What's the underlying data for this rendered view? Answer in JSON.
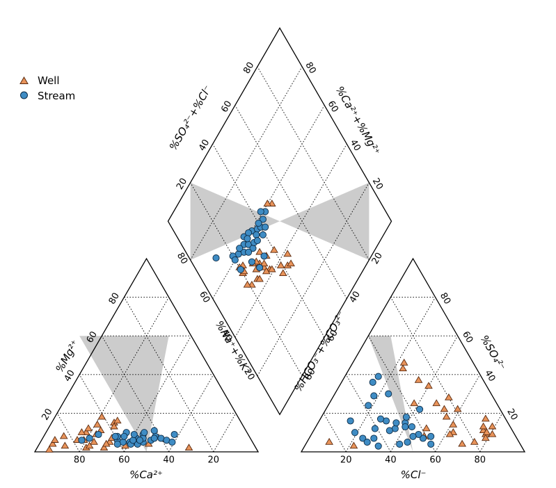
{
  "chart_data": {
    "type": "scatter",
    "title": "",
    "axis_labels": {
      "cation_bottom": "%Ca²⁺",
      "cation_left": "%Mg²⁺",
      "anion_bottom": "%Cl⁻",
      "anion_right": "%SO₄²⁻",
      "diamond_upper_left": "%SO₄²⁻+%Cl⁻",
      "diamond_upper_right": "%Ca²⁺+%Mg²⁺",
      "diamond_lower_left": "%Na⁺+%K⁺",
      "diamond_lower_right": "%HCO₃⁻+%CO₃²⁻"
    },
    "tick_labels": {
      "cation_bottom": [
        "80",
        "60",
        "40",
        "20"
      ],
      "cation_left": [
        "20",
        "40",
        "60",
        "80"
      ],
      "anion_bottom": [
        "20",
        "40",
        "60",
        "80"
      ],
      "anion_right": [
        "80",
        "60",
        "40",
        "20"
      ],
      "diamond_upper_left": [
        "20",
        "40",
        "60",
        "80"
      ],
      "diamond_upper_right": [
        "80",
        "60",
        "40",
        "20"
      ],
      "diamond_lower_left": [
        "20",
        "40",
        "60",
        "80"
      ],
      "diamond_lower_right": [
        "20",
        "40",
        "60",
        "80"
      ]
    },
    "grid": true,
    "legend_position": "top-left",
    "series": [
      {
        "name": "Well",
        "marker": "triangle",
        "color": "#e8935a",
        "cation": [
          [
            1,
            93,
            6
          ],
          [
            8,
            83,
            9
          ],
          [
            3,
            85,
            12
          ],
          [
            2,
            76,
            22
          ],
          [
            6,
            75,
            19
          ],
          [
            10,
            72,
            18
          ],
          [
            5,
            71,
            24
          ],
          [
            14,
            65,
            21
          ],
          [
            18,
            61,
            21
          ],
          [
            15,
            57,
            28
          ],
          [
            16,
            55,
            29
          ],
          [
            9,
            68,
            23
          ],
          [
            11,
            65,
            24
          ],
          [
            2,
            68,
            30
          ],
          [
            5,
            64,
            31
          ],
          [
            3,
            58,
            39
          ],
          [
            7,
            62,
            31
          ],
          [
            4,
            47,
            49
          ],
          [
            2,
            30,
            68
          ],
          [
            10,
            74,
            16
          ],
          [
            12,
            70,
            18
          ],
          [
            6,
            78,
            16
          ],
          [
            3,
            74,
            23
          ],
          [
            4,
            66,
            30
          ],
          [
            13,
            58,
            29
          ],
          [
            4,
            90,
            6
          ],
          [
            6,
            88,
            6
          ]
        ],
        "anion": [
          [
            13,
            8,
            79
          ],
          [
            17,
            9,
            74
          ],
          [
            11,
            13,
            76
          ],
          [
            9,
            13,
            78
          ],
          [
            13,
            12,
            75
          ],
          [
            10,
            12,
            78
          ],
          [
            7,
            14,
            79
          ],
          [
            9,
            10,
            81
          ],
          [
            5,
            20,
            75
          ],
          [
            10,
            27,
            63
          ],
          [
            18,
            26,
            56
          ],
          [
            22,
            19,
            59
          ],
          [
            28,
            20,
            52
          ],
          [
            22,
            25,
            53
          ],
          [
            9,
            29,
            62
          ],
          [
            25,
            27,
            48
          ],
          [
            37,
            29,
            34
          ],
          [
            46,
            31,
            23
          ],
          [
            43,
            33,
            24
          ],
          [
            34,
            26,
            40
          ],
          [
            3,
            75,
            22
          ],
          [
            5,
            85,
            10
          ],
          [
            25,
            37,
            38
          ],
          [
            12,
            38,
            50
          ],
          [
            8,
            41,
            51
          ],
          [
            14,
            25,
            61
          ],
          [
            4,
            26,
            70
          ]
        ],
        "diamond": [
          [
            45,
            25
          ],
          [
            42,
            33
          ],
          [
            38,
            39
          ],
          [
            35,
            42
          ],
          [
            44,
            26
          ],
          [
            48,
            27
          ],
          [
            48,
            30
          ],
          [
            50,
            29
          ],
          [
            45,
            31
          ],
          [
            51,
            27
          ],
          [
            41,
            34
          ],
          [
            43,
            31
          ],
          [
            46,
            32
          ],
          [
            46,
            21
          ],
          [
            53,
            20
          ],
          [
            55,
            22
          ],
          [
            47,
            35
          ],
          [
            45,
            40
          ],
          [
            38,
            45
          ],
          [
            53,
            21
          ],
          [
            48,
            19
          ],
          [
            34,
            44
          ],
          [
            58,
            51
          ],
          [
            60,
            49
          ],
          [
            35,
            38
          ],
          [
            56,
            20
          ],
          [
            51,
            33
          ]
        ]
      },
      {
        "name": "Stream",
        "marker": "circle",
        "color": "#3f8cc4",
        "cation": [
          [
            6,
            76,
            18
          ],
          [
            7,
            72,
            21
          ],
          [
            9,
            67,
            24
          ],
          [
            6,
            60,
            34
          ],
          [
            8,
            59,
            33
          ],
          [
            5,
            55,
            40
          ],
          [
            10,
            54,
            36
          ],
          [
            4,
            52,
            44
          ],
          [
            7,
            51,
            42
          ],
          [
            5,
            49,
            46
          ],
          [
            9,
            47,
            44
          ],
          [
            6,
            45,
            49
          ],
          [
            8,
            42,
            50
          ],
          [
            7,
            40,
            53
          ],
          [
            6,
            38,
            56
          ],
          [
            5,
            36,
            59
          ],
          [
            9,
            33,
            58
          ],
          [
            4,
            55,
            41
          ],
          [
            7,
            48,
            45
          ],
          [
            6,
            53,
            41
          ],
          [
            10,
            46,
            44
          ],
          [
            8,
            60,
            32
          ],
          [
            5,
            58,
            37
          ],
          [
            9,
            51,
            40
          ],
          [
            7,
            43,
            50
          ],
          [
            11,
            41,
            48
          ],
          [
            6,
            50,
            44
          ],
          [
            8,
            56,
            36
          ],
          [
            4,
            61,
            35
          ]
        ],
        "anion": [
          [
            8,
            38,
            54
          ],
          [
            4,
            40,
            56
          ],
          [
            7,
            42,
            51
          ],
          [
            9,
            43,
            48
          ],
          [
            13,
            44,
            43
          ],
          [
            15,
            46,
            39
          ],
          [
            13,
            47,
            40
          ],
          [
            12,
            52,
            36
          ],
          [
            16,
            54,
            30
          ],
          [
            17,
            56,
            27
          ],
          [
            12,
            61,
            27
          ],
          [
            7,
            64,
            29
          ],
          [
            3,
            64,
            33
          ],
          [
            7,
            69,
            24
          ],
          [
            10,
            71,
            19
          ],
          [
            16,
            70,
            14
          ],
          [
            24,
            58,
            18
          ],
          [
            29,
            53,
            18
          ],
          [
            36,
            50,
            14
          ],
          [
            39,
            46,
            15
          ],
          [
            30,
            46,
            24
          ],
          [
            18,
            44,
            38
          ],
          [
            8,
            46,
            46
          ],
          [
            4,
            54,
            42
          ],
          [
            5,
            50,
            45
          ],
          [
            15,
            50,
            35
          ],
          [
            11,
            55,
            34
          ],
          [
            5,
            68,
            27
          ],
          [
            22,
            36,
            42
          ]
        ],
        "diamond": [
          [
            58,
            26
          ],
          [
            60,
            23
          ],
          [
            62,
            20
          ],
          [
            60,
            20
          ],
          [
            55,
            20
          ],
          [
            52,
            27
          ],
          [
            60,
            28
          ],
          [
            58,
            30
          ],
          [
            55,
            31
          ],
          [
            56,
            33
          ],
          [
            62,
            30
          ],
          [
            60,
            35
          ],
          [
            58,
            38
          ],
          [
            57,
            40
          ],
          [
            58,
            43
          ],
          [
            59,
            46
          ],
          [
            55,
            42
          ],
          [
            57,
            36
          ],
          [
            61,
            33
          ],
          [
            54,
            39
          ],
          [
            47,
            29
          ],
          [
            48,
            34
          ],
          [
            69,
            12
          ],
          [
            61,
            44
          ],
          [
            59,
            40
          ],
          [
            61,
            25
          ],
          [
            56,
            28
          ],
          [
            55,
            35
          ],
          [
            60,
            31
          ]
        ]
      }
    ]
  }
}
